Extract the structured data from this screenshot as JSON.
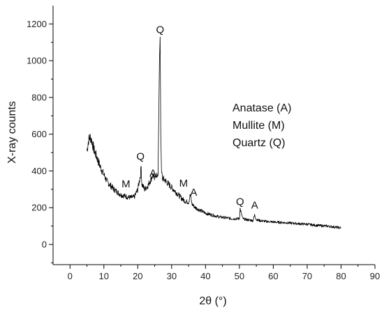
{
  "chart_data": {
    "type": "line",
    "title": "",
    "xlabel": "2θ (°)",
    "ylabel": "X-ray counts",
    "xlim": [
      -5,
      90
    ],
    "ylim": [
      -110,
      1300
    ],
    "xticks": [
      0,
      10,
      20,
      30,
      40,
      50,
      60,
      70,
      80,
      90
    ],
    "yticks": [
      0,
      200,
      400,
      600,
      800,
      1000,
      1200
    ],
    "grid": false,
    "line_color": "#000000",
    "series": [
      {
        "x": [
          5,
          5.5,
          6,
          6.5,
          7,
          8,
          9,
          10,
          11,
          12,
          13,
          14,
          15,
          16,
          17,
          18,
          19,
          20,
          20.8,
          21,
          21.2,
          22,
          23,
          24,
          24.5,
          25,
          25.3,
          25.5,
          26,
          26.4,
          26.6,
          26.8,
          27,
          27.3,
          28,
          29,
          30,
          31,
          32,
          33,
          34,
          35,
          35.5,
          36,
          37,
          38,
          39,
          40,
          42,
          44,
          46,
          48,
          50,
          50.2,
          51,
          52,
          54,
          54.5,
          55,
          56,
          58,
          60,
          62,
          64,
          66,
          68,
          70,
          72,
          74,
          76,
          78,
          80
        ],
        "y": [
          510,
          570,
          585,
          560,
          520,
          470,
          420,
          380,
          340,
          320,
          300,
          285,
          270,
          265,
          258,
          255,
          258,
          300,
          380,
          425,
          330,
          300,
          320,
          360,
          380,
          350,
          395,
          360,
          390,
          1000,
          1130,
          600,
          400,
          360,
          350,
          330,
          310,
          290,
          270,
          250,
          235,
          230,
          270,
          220,
          200,
          190,
          180,
          170,
          160,
          150,
          145,
          140,
          140,
          195,
          140,
          135,
          130,
          160,
          135,
          130,
          125,
          122,
          120,
          118,
          115,
          112,
          110,
          105,
          102,
          100,
          95,
          90
        ]
      }
    ],
    "annotations": [
      {
        "label": "Q",
        "x": 26.6,
        "y": 1150
      },
      {
        "label": "Q",
        "x": 20.8,
        "y": 460
      },
      {
        "label": "A",
        "x": 24.5,
        "y": 370
      },
      {
        "label": "M",
        "x": 16.5,
        "y": 310
      },
      {
        "label": "M",
        "x": 33.5,
        "y": 315
      },
      {
        "label": "A",
        "x": 36.5,
        "y": 265
      },
      {
        "label": "Q",
        "x": 50.2,
        "y": 215
      },
      {
        "label": "A",
        "x": 54.5,
        "y": 195
      }
    ],
    "legend_text": [
      "Anatase (A)",
      "Mullite (M)",
      "Quartz (Q)"
    ],
    "legend_position": "right"
  }
}
